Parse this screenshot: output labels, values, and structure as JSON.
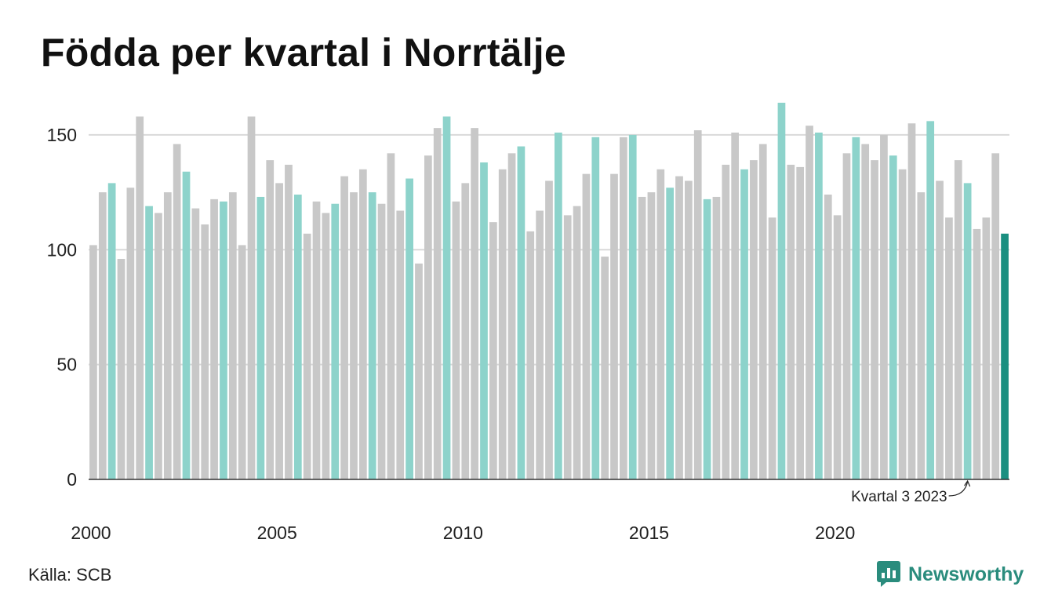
{
  "title": "Födda per kvartal i Norrtälje",
  "source": "Källa: SCB",
  "brand": {
    "name": "Newsworthy",
    "icon": "newsworthy-logo-icon"
  },
  "colors": {
    "other": "#c8c8c8",
    "q3": "#8dd3cb",
    "latest": "#1a8f80",
    "grid": "#d9d9d9",
    "axis": "#333333"
  },
  "chart_data": {
    "type": "bar",
    "title": "Födda per kvartal i Norrtälje",
    "xlabel": "",
    "ylabel": "",
    "ylim": [
      0,
      165
    ],
    "yticks": [
      0,
      50,
      100,
      150
    ],
    "xticks": [
      "2000",
      "2005",
      "2010",
      "2015",
      "2020"
    ],
    "grid": true,
    "start_year": 2000,
    "annotation": {
      "text": "Kvartal 3 2023",
      "year": 2023,
      "quarter": 3
    },
    "values": [
      102,
      125,
      129,
      96,
      127,
      158,
      119,
      116,
      125,
      146,
      134,
      118,
      111,
      122,
      121,
      125,
      102,
      158,
      123,
      139,
      129,
      137,
      124,
      107,
      121,
      116,
      120,
      132,
      125,
      135,
      125,
      120,
      142,
      117,
      131,
      94,
      141,
      153,
      158,
      121,
      129,
      153,
      138,
      112,
      135,
      142,
      145,
      108,
      117,
      130,
      151,
      115,
      119,
      133,
      149,
      97,
      133,
      149,
      150,
      123,
      125,
      135,
      127,
      132,
      130,
      152,
      122,
      123,
      137,
      151,
      135,
      139,
      146,
      114,
      164,
      137,
      136,
      154,
      151,
      124,
      115,
      142,
      149,
      146,
      139,
      150,
      141,
      135,
      155,
      125,
      156,
      130,
      114,
      139,
      129,
      109,
      114,
      142,
      107
    ]
  }
}
